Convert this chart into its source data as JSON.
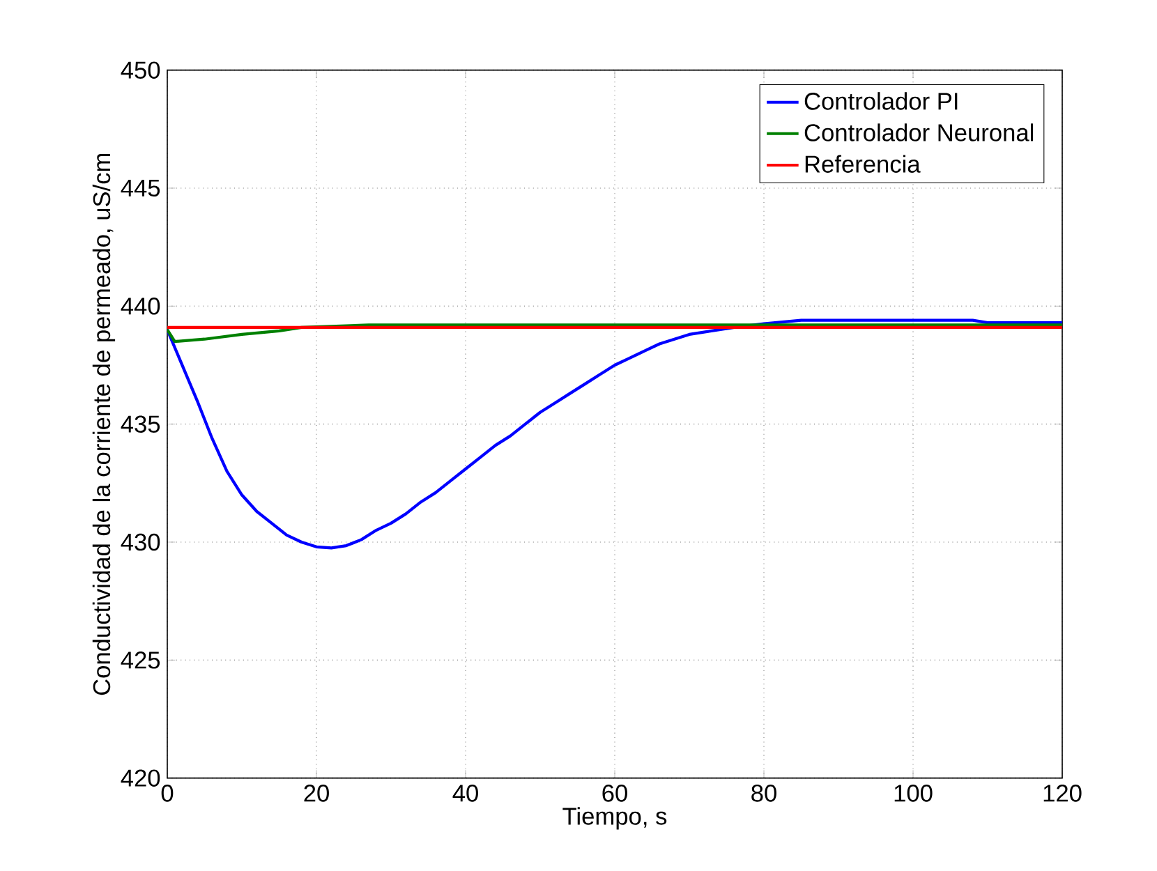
{
  "chart_data": {
    "type": "line",
    "xlabel": "Tiempo, s",
    "ylabel": "Conductividad de la corriente de permeado, uS/cm",
    "xlim": [
      0,
      120
    ],
    "ylim": [
      420,
      450
    ],
    "xticks": [
      0,
      20,
      40,
      60,
      80,
      100,
      120
    ],
    "yticks": [
      420,
      425,
      430,
      435,
      440,
      445,
      450
    ],
    "grid": true,
    "legend": "top right",
    "line_style": "solid",
    "series": [
      {
        "name": "Controlador PI",
        "color": "#0000ff",
        "x": [
          0,
          2,
          4,
          6,
          8,
          10,
          12,
          14,
          16,
          18,
          20,
          22,
          24,
          26,
          28,
          30,
          32,
          34,
          36,
          38,
          40,
          42,
          44,
          46,
          48,
          50,
          52,
          54,
          56,
          58,
          60,
          62,
          64,
          66,
          68,
          70,
          72,
          74,
          76,
          80,
          85,
          108,
          110,
          120
        ],
        "values": [
          439.0,
          437.5,
          436.0,
          434.4,
          433.0,
          432.0,
          431.3,
          430.8,
          430.3,
          430.0,
          429.8,
          429.75,
          429.85,
          430.1,
          430.5,
          430.8,
          431.2,
          431.7,
          432.1,
          432.6,
          433.1,
          433.6,
          434.1,
          434.5,
          435.0,
          435.5,
          435.9,
          436.3,
          436.7,
          437.1,
          437.5,
          437.8,
          438.1,
          438.4,
          438.6,
          438.8,
          438.9,
          439.0,
          439.1,
          439.25,
          439.4,
          439.4,
          439.3,
          439.3
        ]
      },
      {
        "name": "Controlador Neuronal",
        "color": "#008000",
        "x": [
          0,
          1,
          5,
          10,
          15,
          18,
          27,
          120
        ],
        "values": [
          439.0,
          438.5,
          438.6,
          438.8,
          438.95,
          439.1,
          439.2,
          439.2
        ]
      },
      {
        "name": "Referencia",
        "color": "#ff0000",
        "x": [
          0,
          120
        ],
        "values": [
          439.1,
          439.1
        ]
      }
    ]
  }
}
